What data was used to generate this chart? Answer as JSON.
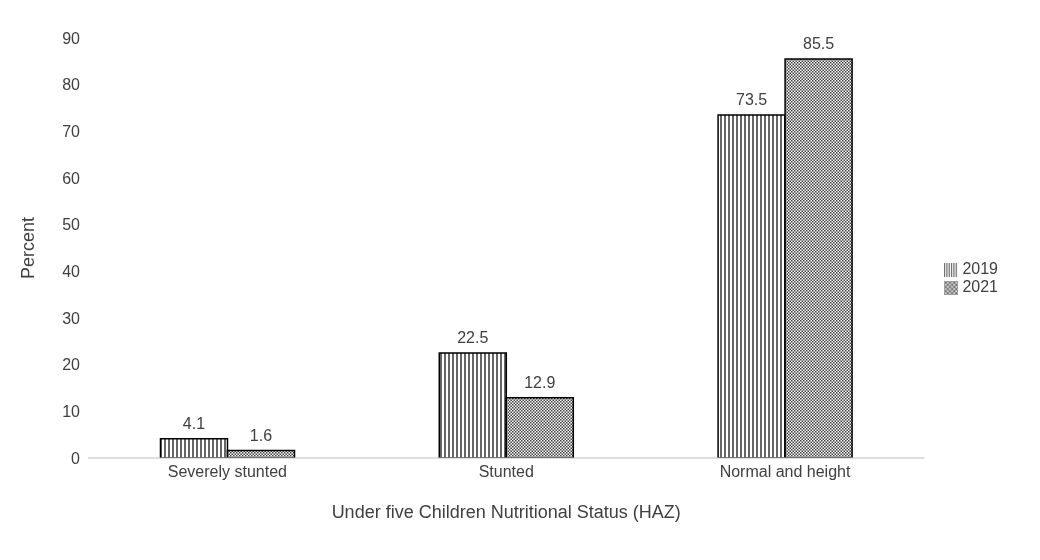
{
  "chart_data": {
    "type": "bar",
    "xlabel": "Under five Children Nutritional Status (HAZ)",
    "ylabel": "Percent",
    "categories": [
      "Severely stunted",
      "Stunted",
      "Normal and height"
    ],
    "series": [
      {
        "name": "2019",
        "color": "#000000",
        "values": [
          4.1,
          22.5,
          73.5
        ]
      },
      {
        "name": "2021",
        "color": "#000000",
        "values": [
          1.6,
          12.9,
          85.5
        ]
      }
    ],
    "ylim": [
      0,
      90
    ],
    "yticks": [
      0,
      10,
      20,
      30,
      40,
      50,
      60,
      70,
      80,
      90
    ],
    "grid": false,
    "legend": "right",
    "data_labels": true
  }
}
